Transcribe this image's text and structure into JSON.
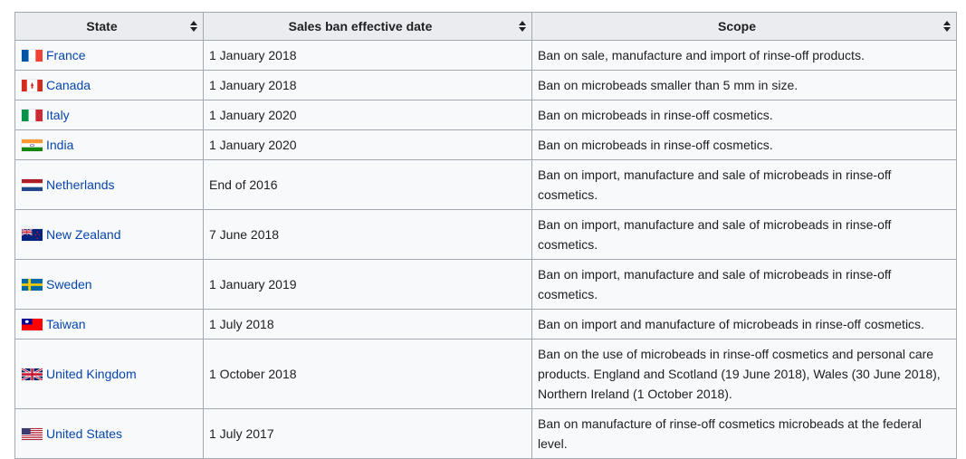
{
  "table": {
    "headers": [
      "State",
      "Sales ban effective date",
      "Scope"
    ],
    "rows": [
      {
        "state": "France",
        "flag": "flag-france",
        "date": "1 January 2018",
        "scope": "Ban on sale, manufacture and import of rinse-off products."
      },
      {
        "state": "Canada",
        "flag": "flag-canada",
        "date": "1 January 2018",
        "scope": "Ban on microbeads smaller than 5 mm in size."
      },
      {
        "state": "Italy",
        "flag": "flag-italy",
        "date": "1 January 2020",
        "scope": "Ban on microbeads in rinse-off cosmetics."
      },
      {
        "state": "India",
        "flag": "flag-india",
        "date": "1 January 2020",
        "scope": "Ban on microbeads in rinse-off cosmetics."
      },
      {
        "state": "Netherlands",
        "flag": "flag-netherlands",
        "date": "End of 2016",
        "scope": "Ban on import, manufacture and sale of microbeads in rinse-off cosmetics."
      },
      {
        "state": "New Zealand",
        "flag": "flag-new-zealand",
        "date": "7 June 2018",
        "scope": "Ban on import, manufacture and sale of microbeads in rinse-off cosmetics."
      },
      {
        "state": "Sweden",
        "flag": "flag-sweden",
        "date": "1 January 2019",
        "scope": "Ban on import, manufacture and sale of microbeads in rinse-off cosmetics."
      },
      {
        "state": "Taiwan",
        "flag": "flag-taiwan",
        "date": "1 July 2018",
        "scope": "Ban on import and manufacture of microbeads in rinse-off cosmetics."
      },
      {
        "state": "United Kingdom",
        "flag": "flag-united-kingdom",
        "date": "1 October 2018",
        "scope": "Ban on the use of microbeads in rinse-off cosmetics and personal care products. England and Scotland (19 June 2018), Wales (30 June 2018), Northern Ireland (1 October 2018)."
      },
      {
        "state": "United States",
        "flag": "flag-united-states",
        "date": "1 July 2017",
        "scope": "Ban on manufacture of rinse-off cosmetics microbeads at the federal level."
      }
    ]
  },
  "colors": {
    "link": "#0645ad",
    "header_bg": "#eaecf0",
    "cell_bg": "#f8f9fa",
    "border": "#a2a9b1"
  }
}
